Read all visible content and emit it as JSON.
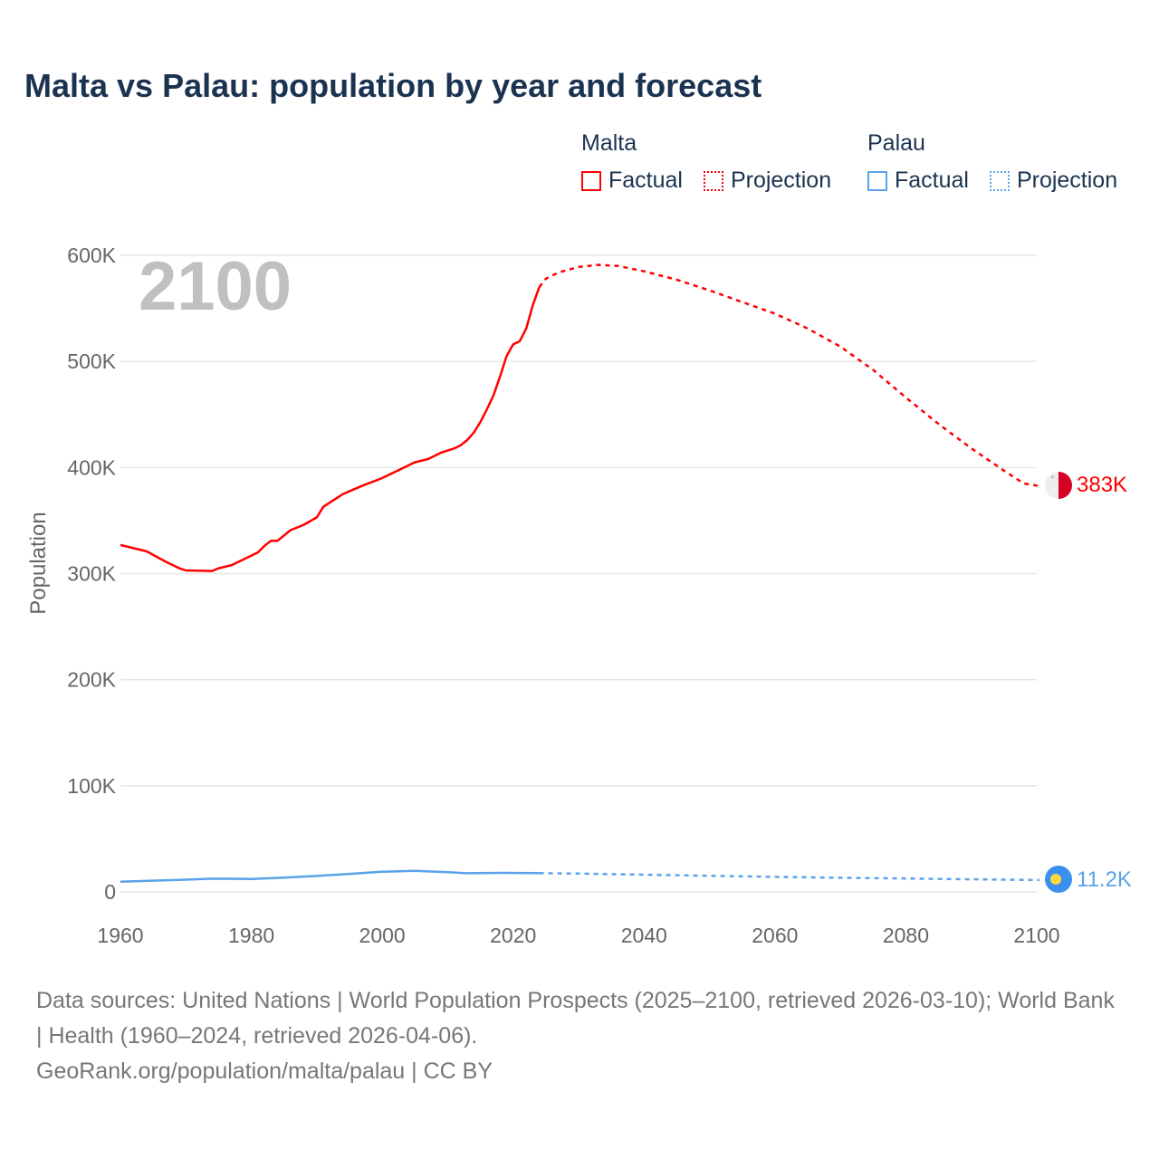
{
  "title": "Malta vs Palau: population by year and forecast",
  "legend": [
    {
      "country": "Malta",
      "factual": "Factual",
      "projection": "Projection",
      "color": "#ff0000"
    },
    {
      "country": "Palau",
      "factual": "Factual",
      "projection": "Projection",
      "color": "#5aa2ea"
    }
  ],
  "year_label": "2100",
  "footer": {
    "sources": "Data sources: United Nations | World Population Prospects (2025–2100, retrieved 2026-03-10); World Bank | Health (1960–2024, retrieved 2026-04-06).",
    "credit": "GeoRank.org/population/malta/palau | CC BY"
  },
  "chart_data": {
    "type": "line",
    "title": "Malta vs Palau: population by year and forecast",
    "xlabel": "",
    "ylabel": "Population",
    "xlim": [
      1960,
      2100
    ],
    "ylim": [
      0,
      600000
    ],
    "x_ticks": [
      "1960",
      "1980",
      "2000",
      "2020",
      "2040",
      "2060",
      "2080",
      "2100"
    ],
    "y_ticks": [
      "0",
      "100K",
      "200K",
      "300K",
      "400K",
      "500K",
      "600K"
    ],
    "grid": true,
    "series": [
      {
        "name": "Malta",
        "color": "#ff0000",
        "end_label": "383K",
        "factual": [
          [
            1960,
            327000
          ],
          [
            1964,
            321000
          ],
          [
            1967,
            311000
          ],
          [
            1969,
            305000
          ],
          [
            1970,
            303000
          ],
          [
            1974,
            302500
          ],
          [
            1975,
            305000
          ],
          [
            1977,
            308000
          ],
          [
            1980,
            317000
          ],
          [
            1981,
            320000
          ],
          [
            1982,
            326000
          ],
          [
            1983,
            331000
          ],
          [
            1984,
            331000
          ],
          [
            1986,
            341000
          ],
          [
            1988,
            346000
          ],
          [
            1990,
            353000
          ],
          [
            1991,
            363000
          ],
          [
            1994,
            375000
          ],
          [
            1997,
            383000
          ],
          [
            2000,
            390000
          ],
          [
            2003,
            399000
          ],
          [
            2005,
            405000
          ],
          [
            2007,
            408000
          ],
          [
            2009,
            414000
          ],
          [
            2011,
            418000
          ],
          [
            2012,
            421000
          ],
          [
            2013,
            426000
          ],
          [
            2014,
            433000
          ],
          [
            2015,
            443000
          ],
          [
            2016,
            455000
          ],
          [
            2017,
            468000
          ],
          [
            2018,
            486000
          ],
          [
            2019,
            505000
          ],
          [
            2020,
            516000
          ],
          [
            2021,
            519000
          ],
          [
            2022,
            531000
          ],
          [
            2023,
            553000
          ],
          [
            2024,
            570000
          ]
        ],
        "projection": [
          [
            2024,
            570000
          ],
          [
            2025,
            578000
          ],
          [
            2027,
            584000
          ],
          [
            2030,
            589000
          ],
          [
            2033,
            591000
          ],
          [
            2036,
            590000
          ],
          [
            2040,
            585000
          ],
          [
            2045,
            577000
          ],
          [
            2050,
            567000
          ],
          [
            2055,
            556000
          ],
          [
            2060,
            545000
          ],
          [
            2065,
            531000
          ],
          [
            2070,
            514000
          ],
          [
            2075,
            492000
          ],
          [
            2080,
            466000
          ],
          [
            2085,
            441000
          ],
          [
            2090,
            418000
          ],
          [
            2095,
            397000
          ],
          [
            2098,
            385000
          ],
          [
            2100,
            383000
          ]
        ]
      },
      {
        "name": "Palau",
        "color": "#5aa2ea",
        "end_label": "11.2K",
        "factual": [
          [
            1960,
            9600
          ],
          [
            1965,
            10600
          ],
          [
            1970,
            11500
          ],
          [
            1974,
            12500
          ],
          [
            1980,
            12200
          ],
          [
            1985,
            13500
          ],
          [
            1990,
            15000
          ],
          [
            1995,
            17000
          ],
          [
            2000,
            19000
          ],
          [
            2005,
            19900
          ],
          [
            2010,
            18500
          ],
          [
            2013,
            17600
          ],
          [
            2018,
            17900
          ],
          [
            2024,
            17700
          ]
        ],
        "projection": [
          [
            2024,
            17700
          ],
          [
            2030,
            17200
          ],
          [
            2040,
            16200
          ],
          [
            2050,
            15200
          ],
          [
            2060,
            14200
          ],
          [
            2070,
            13300
          ],
          [
            2080,
            12600
          ],
          [
            2090,
            11900
          ],
          [
            2100,
            11200
          ]
        ]
      }
    ]
  }
}
